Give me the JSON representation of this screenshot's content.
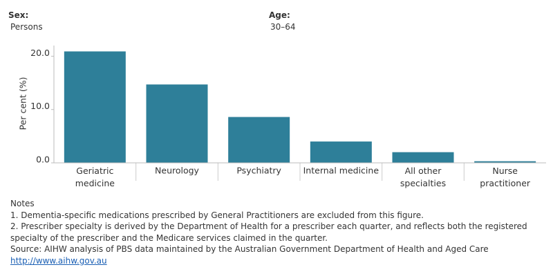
{
  "filters": [
    {
      "label": "Sex:",
      "value": "Persons"
    },
    {
      "label": "Age:",
      "value": "30–64"
    }
  ],
  "chart_data": {
    "type": "bar",
    "y_label": "Per cent (%)",
    "categories": [
      "Geriatric medicine",
      "Neurology",
      "Psychiatry",
      "Internal medicine",
      "All other specialties",
      "Nurse practitioner"
    ],
    "values": [
      20.9,
      14.7,
      8.6,
      4.0,
      2.0,
      0.3
    ],
    "color": "#2e7f99",
    "ylim": [
      0,
      22
    ],
    "yticks": [
      {
        "value": 0,
        "label": "0.0"
      },
      {
        "value": 10,
        "label": "10.0"
      },
      {
        "value": 20,
        "label": "20.0"
      }
    ]
  },
  "notes": {
    "title": "Notes",
    "lines": [
      "1. Dementia-specific medications prescribed by General Practitioners are excluded from this figure.",
      "2. Prescriber specialty is derived by the Department of Health for a prescriber each quarter, and reflects both the registered specialty of the prescriber and the Medicare services claimed in the quarter.",
      "Source: AIHW analysis of PBS data maintained by the Australian Government Department of Health and Aged Care"
    ],
    "link": "http://www.aihw.gov.au"
  }
}
